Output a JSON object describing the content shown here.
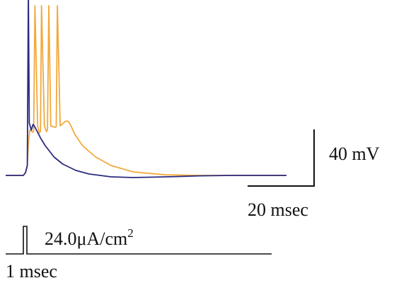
{
  "chart_data": {
    "type": "line",
    "series": [
      {
        "color": "#f2a93b",
        "x": [
          0,
          1.0,
          1.8,
          2.3,
          2.9,
          4.0,
          4.4,
          4.7,
          5.3,
          6.5,
          7.3,
          7.8,
          8.3,
          9.6,
          10.5,
          11.0,
          11.6,
          12.5,
          14.5,
          15.0,
          15.5,
          16.8,
          19.0,
          20.0,
          20.5,
          21.1,
          23.5,
          27.0,
          33.0,
          40.0,
          50.0,
          65.0,
          80.0,
          100.0,
          120.0
        ],
        "y": [
          -62.0,
          -60.0,
          -55.0,
          -40.0,
          -30.0,
          -31.0,
          -31.5,
          -30.5,
          58.0,
          -27.0,
          -32.0,
          -31.0,
          58.0,
          -27.0,
          -31.0,
          -30.0,
          58.0,
          -27.0,
          -28.0,
          -27.5,
          58.0,
          -27.0,
          -24.0,
          -23.5,
          -24.0,
          -25.0,
          -33.0,
          -41.0,
          -49.0,
          -55.0,
          -59.5,
          -61.6,
          -62.0,
          -62.0,
          -62.0
        ]
      },
      {
        "color": "#2a2a80",
        "x": [
          0,
          1.0,
          1.8,
          2.3,
          2.7,
          3.6,
          4.4,
          5.0,
          6.0,
          8.0,
          10.0,
          14.0,
          18.0,
          24.0,
          30.0,
          40.0,
          50.0,
          60.0,
          70.0,
          80.0,
          95.0,
          110.0,
          120.0
        ],
        "y": [
          -62.0,
          -60.0,
          -55.0,
          68.0,
          -25.0,
          -30.0,
          -26.0,
          -27.0,
          -30.0,
          -36.0,
          -41.0,
          -49.0,
          -54.0,
          -58.5,
          -61.0,
          -63.0,
          -63.5,
          -63.2,
          -62.8,
          -62.3,
          -62.0,
          -62.0,
          -62.0
        ]
      }
    ],
    "scale_bar": {
      "vertical_label": "40 mV",
      "vertical_value": 40,
      "horizontal_label": "20 msec",
      "horizontal_value": 20
    },
    "stimulus": {
      "amplitude_label": "24.0μA/cm",
      "amplitude_exponent": "2",
      "duration_label": "1 msec",
      "duration_ms": 1
    }
  }
}
